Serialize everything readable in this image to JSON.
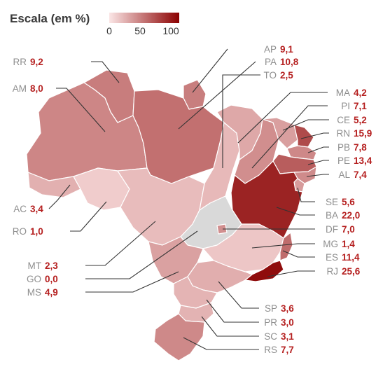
{
  "legend": {
    "title": "Escala (em %)",
    "min_label": "0",
    "mid_label": "50",
    "max_label": "100",
    "color_low": "#fbe6e6",
    "color_high": "#8b0000"
  },
  "colors": {
    "label_name": "#8e8e8e",
    "label_value": "#b51f1f",
    "no_data": "#d9d9d9"
  },
  "chart_data": {
    "type": "choropleth",
    "title": "Escala (em %)",
    "scale_range": [
      0,
      100
    ],
    "regions": [
      {
        "code": "AP",
        "value_label": "9,1",
        "value": 9.1
      },
      {
        "code": "PA",
        "value_label": "10,8",
        "value": 10.8
      },
      {
        "code": "TO",
        "value_label": "2,5",
        "value": 2.5
      },
      {
        "code": "RR",
        "value_label": "9,2",
        "value": 9.2
      },
      {
        "code": "AM",
        "value_label": "8,0",
        "value": 8.0
      },
      {
        "code": "MA",
        "value_label": "4,2",
        "value": 4.2
      },
      {
        "code": "PI",
        "value_label": "7,1",
        "value": 7.1
      },
      {
        "code": "CE",
        "value_label": "5,2",
        "value": 5.2
      },
      {
        "code": "RN",
        "value_label": "15,9",
        "value": 15.9
      },
      {
        "code": "PB",
        "value_label": "7,8",
        "value": 7.8
      },
      {
        "code": "PE",
        "value_label": "13,4",
        "value": 13.4
      },
      {
        "code": "AL",
        "value_label": "7,4",
        "value": 7.4
      },
      {
        "code": "AC",
        "value_label": "3,4",
        "value": 3.4
      },
      {
        "code": "RO",
        "value_label": "1,0",
        "value": 1.0
      },
      {
        "code": "SE",
        "value_label": "5,6",
        "value": 5.6
      },
      {
        "code": "BA",
        "value_label": "22,0",
        "value": 22.0
      },
      {
        "code": "DF",
        "value_label": "7,0",
        "value": 7.0
      },
      {
        "code": "MG",
        "value_label": "1,4",
        "value": 1.4
      },
      {
        "code": "MT",
        "value_label": "2,3",
        "value": 2.3
      },
      {
        "code": "GO",
        "value_label": "0,0",
        "value": 0.0
      },
      {
        "code": "ES",
        "value_label": "11,4",
        "value": 11.4
      },
      {
        "code": "MS",
        "value_label": "4,9",
        "value": 4.9
      },
      {
        "code": "RJ",
        "value_label": "25,6",
        "value": 25.6
      },
      {
        "code": "SP",
        "value_label": "3,6",
        "value": 3.6
      },
      {
        "code": "PR",
        "value_label": "3,0",
        "value": 3.0
      },
      {
        "code": "SC",
        "value_label": "3,1",
        "value": 3.1
      },
      {
        "code": "RS",
        "value_label": "7,7",
        "value": 7.7
      }
    ]
  }
}
